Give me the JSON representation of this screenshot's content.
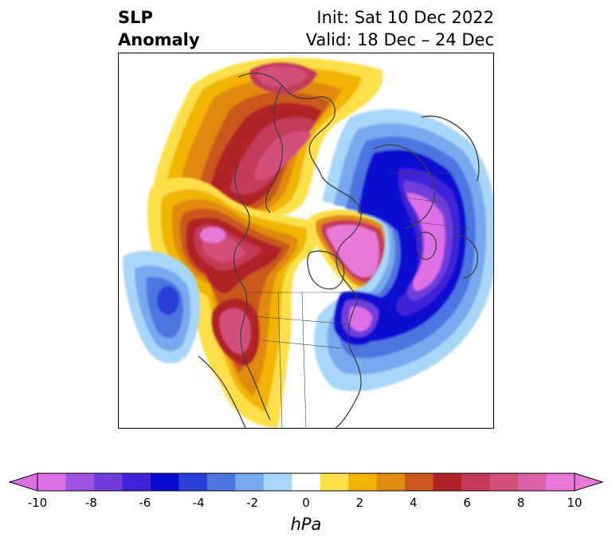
{
  "title": {
    "left_line1": "SLP",
    "left_line2": "Anomaly",
    "right_line1": "Init: Sat 10 Dec 2022",
    "right_line2": "Valid: 18 Dec – 24 Dec"
  },
  "colorbar": {
    "units": "hPa",
    "ticks": [
      "-10",
      "-8",
      "-6",
      "-4",
      "-2",
      "0",
      "2",
      "4",
      "6",
      "8",
      "10"
    ],
    "tick_values": [
      -10,
      -8,
      -6,
      -4,
      -2,
      0,
      2,
      4,
      6,
      8,
      10
    ],
    "levels": [
      -10,
      -9,
      -8,
      -7,
      -6,
      -5,
      -4,
      -3,
      -2,
      -1,
      1,
      2,
      3,
      4,
      5,
      6,
      7,
      8,
      9,
      10
    ],
    "colors": [
      "#dd6fe6",
      "#9e55e2",
      "#6f3edc",
      "#4123d8",
      "#0a0ad2",
      "#2a3ed8",
      "#4e74e0",
      "#78a8ee",
      "#a8d6f8",
      "#ffffff",
      "#fde04a",
      "#f1b400",
      "#e08a10",
      "#c8581c",
      "#b02228",
      "#c43a58",
      "#d2507a",
      "#dc62a6",
      "#e77ad8"
    ],
    "extend_under_color": "#dd6fe6",
    "extend_over_color": "#e77ad8"
  }
}
